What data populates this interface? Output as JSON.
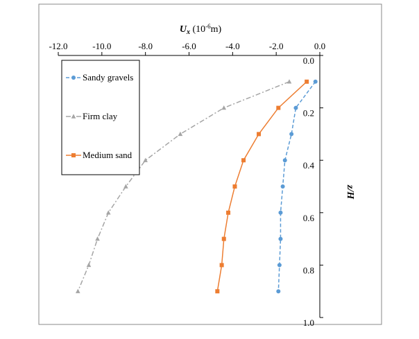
{
  "chart_data": {
    "type": "line",
    "xlabel_main": "U",
    "xlabel_sub": "x",
    "xlabel_unit": " (10",
    "xlabel_exp": "-6",
    "xlabel_end": "m)",
    "ylabel": "z/H",
    "xlim": [
      -12.0,
      0.0
    ],
    "ylim": [
      0.0,
      1.0
    ],
    "x_ticks": [
      "-12.0",
      "-10.0",
      "-8.0",
      "-6.0",
      "-4.0",
      "-2.0",
      "0.0"
    ],
    "x_tick_values": [
      -12,
      -10,
      -8,
      -6,
      -4,
      -2,
      0
    ],
    "y_ticks": [
      "0.0",
      "0.2",
      "0.4",
      "0.6",
      "0.8",
      "1.0"
    ],
    "y_tick_values": [
      0,
      0.2,
      0.4,
      0.6,
      0.8,
      1.0
    ],
    "grid": false,
    "legend_position": "top-left",
    "series": [
      {
        "name": "Sandy gravels",
        "color": "#5b9bd5",
        "line_style": "dashed",
        "marker": "circle",
        "points": [
          [
            -0.2,
            0.1
          ],
          [
            -1.1,
            0.2
          ],
          [
            -1.3,
            0.3
          ],
          [
            -1.6,
            0.4
          ],
          [
            -1.7,
            0.5
          ],
          [
            -1.8,
            0.6
          ],
          [
            -1.8,
            0.7
          ],
          [
            -1.85,
            0.8
          ],
          [
            -1.9,
            0.9
          ]
        ]
      },
      {
        "name": "Firm clay",
        "color": "#a5a5a5",
        "line_style": "dash-dot",
        "marker": "triangle",
        "points": [
          [
            -1.4,
            0.1
          ],
          [
            -4.4,
            0.2
          ],
          [
            -6.4,
            0.3
          ],
          [
            -8.0,
            0.4
          ],
          [
            -8.9,
            0.5
          ],
          [
            -9.7,
            0.6
          ],
          [
            -10.2,
            0.7
          ],
          [
            -10.6,
            0.8
          ],
          [
            -11.1,
            0.9
          ]
        ]
      },
      {
        "name": "Medium sand",
        "color": "#ed7d31",
        "line_style": "solid",
        "marker": "square",
        "points": [
          [
            -0.6,
            0.1
          ],
          [
            -1.9,
            0.2
          ],
          [
            -2.8,
            0.3
          ],
          [
            -3.5,
            0.4
          ],
          [
            -3.9,
            0.5
          ],
          [
            -4.2,
            0.6
          ],
          [
            -4.4,
            0.7
          ],
          [
            -4.5,
            0.8
          ],
          [
            -4.7,
            0.9
          ]
        ]
      }
    ]
  }
}
